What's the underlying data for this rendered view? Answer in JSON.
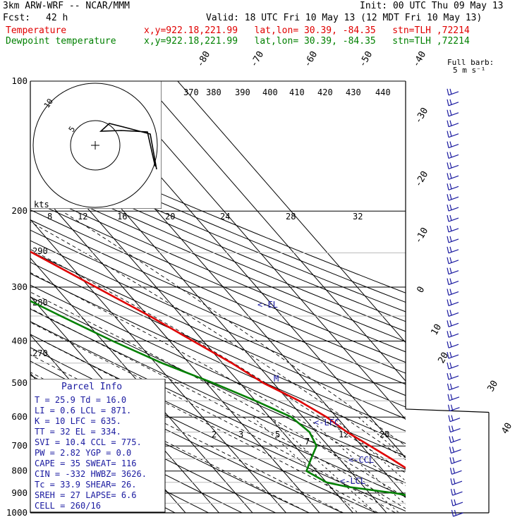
{
  "header": {
    "model": "3km ARW-WRF -- NCAR/MMM",
    "init": "Init: 00 UTC Thu 09 May 13",
    "fcst_label": "Fcst:",
    "fcst_value": "42 h",
    "valid": "Valid: 18 UTC Fri 10 May 13 (12 MDT Fri 10 May 13)",
    "temp_label": "Temperature",
    "dew_label": "Dewpoint temperature",
    "location": "x,y=922.18,221.99   lat,lon= 30.39, -84.35   stn=TLH ,72214"
  },
  "colors": {
    "temperature": "#e00000",
    "dewpoint": "#008000",
    "text": "#000000",
    "index": "#1a1aa0"
  },
  "chart_data": {
    "type": "line",
    "subtype": "skew-T log-P",
    "y_axis": {
      "label": "",
      "scale": "log",
      "ticks": [
        100,
        200,
        300,
        400,
        500,
        600,
        700,
        800,
        900,
        1000
      ],
      "range": [
        1000,
        100
      ]
    },
    "isotherm_labels": [
      -80,
      -70,
      -60,
      -50,
      -40,
      -30,
      -20,
      -10,
      0,
      10,
      20,
      30,
      40
    ],
    "theta_labels": [
      370,
      380,
      390,
      400,
      410,
      420,
      430,
      440
    ],
    "theta_left_labels": [
      290,
      280,
      270
    ],
    "mixing_labels": [
      2,
      3,
      5,
      7,
      12,
      20
    ],
    "hodo_label": "kts",
    "hodo_ticks": [
      8,
      12,
      16,
      20,
      24,
      28,
      32
    ],
    "hodo_rings": [
      "5",
      "10"
    ],
    "barb_title": "Full barb:",
    "barb_unit": "5 m s⁻¹",
    "levels": [
      "<-EL",
      "<-LFC",
      "<-CCL",
      "<-LCL"
    ],
    "level_marker": "M",
    "series": [
      {
        "name": "Temperature",
        "points": [
          [
            1000,
            25.9
          ],
          [
            950,
            22.0
          ],
          [
            925,
            20.2
          ],
          [
            900,
            20.0
          ],
          [
            870,
            21.0
          ],
          [
            850,
            20.4
          ],
          [
            800,
            18.0
          ],
          [
            750,
            15.5
          ],
          [
            700,
            12.5
          ],
          [
            650,
            9.2
          ],
          [
            600,
            7.0
          ],
          [
            550,
            3.0
          ],
          [
            500,
            -3.0
          ],
          [
            450,
            -7.2
          ],
          [
            400,
            -13.0
          ],
          [
            350,
            -19.5
          ],
          [
            300,
            -28.0
          ],
          [
            250,
            -38.0
          ],
          [
            200,
            -51.5
          ],
          [
            175,
            -55.0
          ],
          [
            150,
            -57.8
          ],
          [
            125,
            -61.0
          ],
          [
            110,
            -63.5
          ],
          [
            100,
            -65.0
          ]
        ]
      },
      {
        "name": "Dewpoint temperature",
        "points": [
          [
            1000,
            16.0
          ],
          [
            975,
            15.5
          ],
          [
            925,
            15.0
          ],
          [
            900,
            7.5
          ],
          [
            870,
            -5.0
          ],
          [
            850,
            -10.0
          ],
          [
            800,
            -13.0
          ],
          [
            750,
            -8.5
          ],
          [
            700,
            -3.5
          ],
          [
            650,
            -2.0
          ],
          [
            600,
            -3.5
          ],
          [
            550,
            -10.0
          ],
          [
            500,
            -18.0
          ],
          [
            450,
            -28.0
          ],
          [
            400,
            -37.0
          ],
          [
            350,
            -46.0
          ],
          [
            300,
            -56.0
          ],
          [
            250,
            -70.0
          ],
          [
            200,
            -75.5
          ],
          [
            170,
            -80.0
          ],
          [
            150,
            -80.5
          ],
          [
            130,
            -81.5
          ],
          [
            100,
            -83.0
          ]
        ]
      }
    ]
  },
  "parcel": {
    "title": "Parcel Info",
    "rows": [
      "T  =    25.9  Td =  16.0",
      "LI =     0.6  LCL =  871.",
      "K  =      10  LFC =  635.",
      "TT =      32  EL  =  334.",
      "SVI =   10.4  CCL =  775.",
      "PW =    2.82  YGP =   0.0",
      "CAPE =    35  SWEAT=  116",
      "CIN =   -332  HWBZ= 3626.",
      "Tc =    33.9  SHEAR=  26.",
      "SREH =    27  LAPSE=  6.6",
      "CELL = 260/16"
    ]
  }
}
